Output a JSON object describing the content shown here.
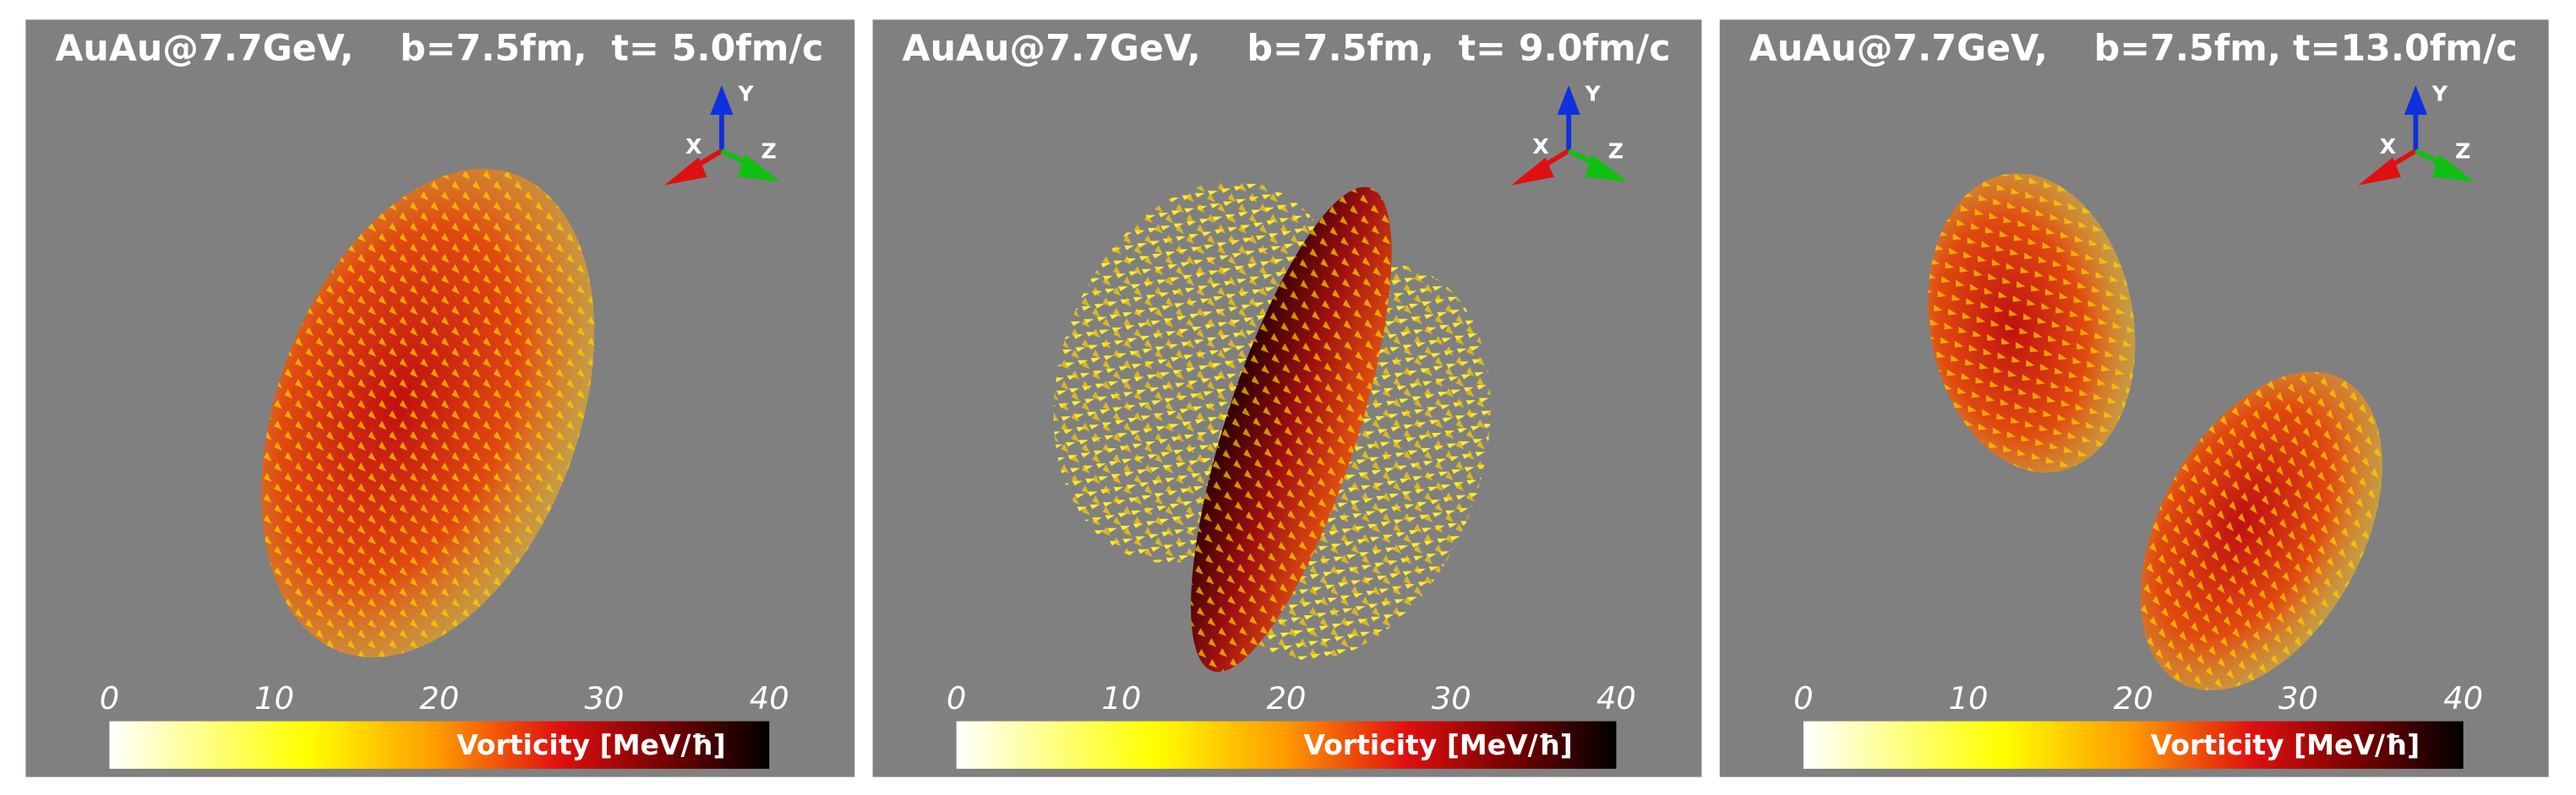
{
  "panels": [
    {
      "collision": "AuAu@7.7GeV,",
      "impact": "b=7.5fm,",
      "time": "t= 5.0fm/c"
    },
    {
      "collision": "AuAu@7.7GeV,",
      "impact": "b=7.5fm,",
      "time": "t= 9.0fm/c"
    },
    {
      "collision": "AuAu@7.7GeV,",
      "impact": "b=7.5fm,",
      "time": "t=13.0fm/c"
    }
  ],
  "axes_triad": {
    "x": "X",
    "y": "Y",
    "z": "Z"
  },
  "colorbar": {
    "label": "Vorticity [MeV/ħ]",
    "range": [
      0,
      40
    ],
    "ticks": [
      0,
      10,
      20,
      30,
      40
    ]
  }
}
